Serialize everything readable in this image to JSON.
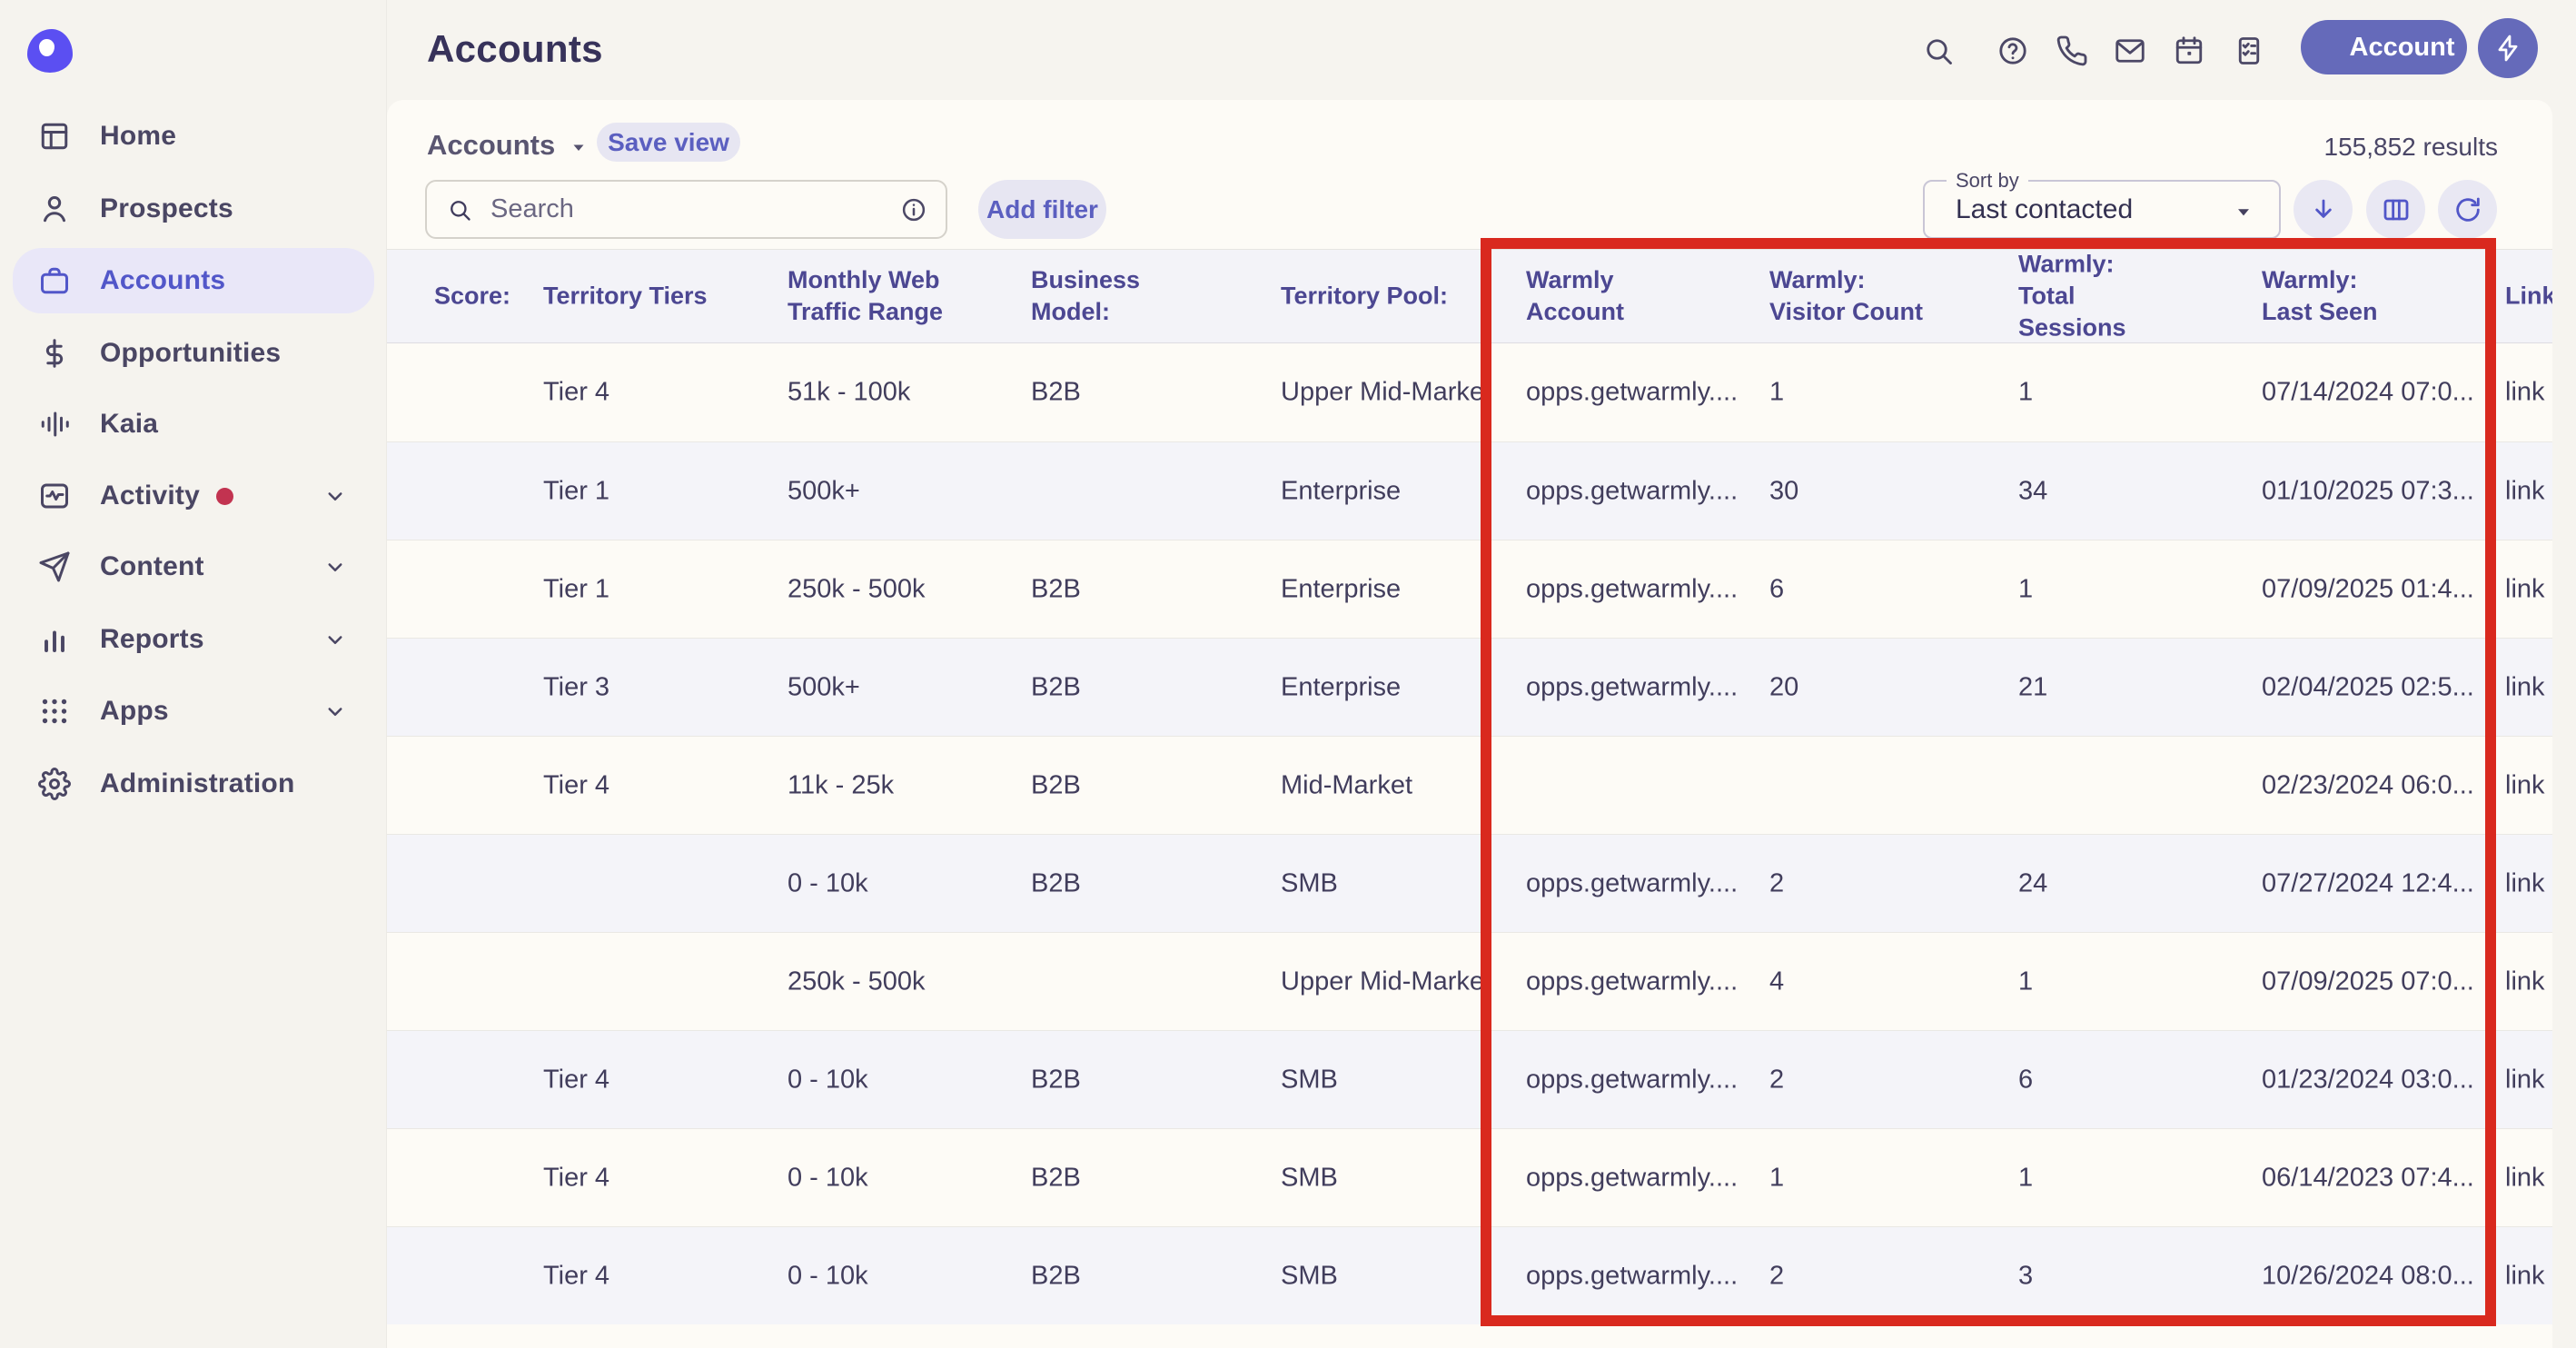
{
  "page_title": "Accounts",
  "topbar": {
    "icons": [
      "search-icon",
      "help-icon",
      "phone-icon",
      "mail-icon",
      "calendar-icon",
      "tasks-icon"
    ],
    "account_button_label": "Account"
  },
  "sidebar": {
    "items": [
      {
        "label": "Home",
        "icon": "home-icon",
        "selected": false,
        "chevron": false,
        "dot": false
      },
      {
        "label": "Prospects",
        "icon": "person-icon",
        "selected": false,
        "chevron": false,
        "dot": false
      },
      {
        "label": "Accounts",
        "icon": "briefcase-icon",
        "selected": true,
        "chevron": false,
        "dot": false
      },
      {
        "label": "Opportunities",
        "icon": "dollar-icon",
        "selected": false,
        "chevron": false,
        "dot": false
      },
      {
        "label": "Kaia",
        "icon": "waveform-icon",
        "selected": false,
        "chevron": false,
        "dot": false
      },
      {
        "label": "Activity",
        "icon": "activity-icon",
        "selected": false,
        "chevron": true,
        "dot": true
      },
      {
        "label": "Content",
        "icon": "send-icon",
        "selected": false,
        "chevron": true,
        "dot": false
      },
      {
        "label": "Reports",
        "icon": "bar-chart-icon",
        "selected": false,
        "chevron": true,
        "dot": false
      },
      {
        "label": "Apps",
        "icon": "apps-grid-icon",
        "selected": false,
        "chevron": true,
        "dot": false
      },
      {
        "label": "Administration",
        "icon": "gear-icon",
        "selected": false,
        "chevron": false,
        "dot": false
      }
    ]
  },
  "toolbar": {
    "view_label": "Accounts",
    "save_view_label": "Save view",
    "search_placeholder": "Search",
    "add_filter_label": "Add filter",
    "results": "155,852 results",
    "sort_by_label": "Sort by",
    "sort_value": "Last contacted",
    "action_icons": [
      "download-icon",
      "columns-icon",
      "refresh-icon"
    ]
  },
  "table": {
    "columns": [
      {
        "key": "score",
        "label": "Score:"
      },
      {
        "key": "tiers",
        "label": "Territory Tiers"
      },
      {
        "key": "traffic",
        "label": "Monthly Web Traffic Range"
      },
      {
        "key": "model",
        "label": "Business Model:"
      },
      {
        "key": "pool",
        "label": "Territory Pool:"
      },
      {
        "key": "warmly",
        "label": "Warmly Account"
      },
      {
        "key": "visitors",
        "label": "Warmly: Visitor Count"
      },
      {
        "key": "sessions",
        "label": "Warmly: Total Sessions"
      },
      {
        "key": "last_seen",
        "label": "Warmly: Last Seen"
      },
      {
        "key": "link",
        "label": "Link"
      }
    ],
    "rows": [
      {
        "score": "",
        "tiers": "Tier 4",
        "traffic": "51k - 100k",
        "model": "B2B",
        "pool": "Upper Mid-Market",
        "warmly": "opps.getwarmly....",
        "visitors": "1",
        "sessions": "1",
        "last_seen": "07/14/2024 07:0...",
        "link": "link"
      },
      {
        "score": "",
        "tiers": "Tier 1",
        "traffic": "500k+",
        "model": "",
        "pool": "Enterprise",
        "warmly": "opps.getwarmly....",
        "visitors": "30",
        "sessions": "34",
        "last_seen": "01/10/2025 07:3...",
        "link": "link"
      },
      {
        "score": "",
        "tiers": "Tier 1",
        "traffic": "250k - 500k",
        "model": "B2B",
        "pool": "Enterprise",
        "warmly": "opps.getwarmly....",
        "visitors": "6",
        "sessions": "1",
        "last_seen": "07/09/2025 01:4...",
        "link": "link"
      },
      {
        "score": "",
        "tiers": "Tier 3",
        "traffic": "500k+",
        "model": "B2B",
        "pool": "Enterprise",
        "warmly": "opps.getwarmly....",
        "visitors": "20",
        "sessions": "21",
        "last_seen": "02/04/2025 02:5...",
        "link": "link"
      },
      {
        "score": "",
        "tiers": "Tier 4",
        "traffic": "11k - 25k",
        "model": "B2B",
        "pool": "Mid-Market",
        "warmly": "",
        "visitors": "",
        "sessions": "",
        "last_seen": "02/23/2024 06:0...",
        "link": "link"
      },
      {
        "score": "",
        "tiers": "",
        "traffic": "0 - 10k",
        "model": "B2B",
        "pool": "SMB",
        "warmly": "opps.getwarmly....",
        "visitors": "2",
        "sessions": "24",
        "last_seen": "07/27/2024 12:4...",
        "link": "link"
      },
      {
        "score": "",
        "tiers": "",
        "traffic": "250k - 500k",
        "model": "",
        "pool": "Upper Mid-Market",
        "warmly": "opps.getwarmly....",
        "visitors": "4",
        "sessions": "1",
        "last_seen": "07/09/2025 07:0...",
        "link": "link"
      },
      {
        "score": "",
        "tiers": "Tier 4",
        "traffic": "0 - 10k",
        "model": "B2B",
        "pool": "SMB",
        "warmly": "opps.getwarmly....",
        "visitors": "2",
        "sessions": "6",
        "last_seen": "01/23/2024 03:0...",
        "link": "link"
      },
      {
        "score": "",
        "tiers": "Tier 4",
        "traffic": "0 - 10k",
        "model": "B2B",
        "pool": "SMB",
        "warmly": "opps.getwarmly....",
        "visitors": "1",
        "sessions": "1",
        "last_seen": "06/14/2023 07:4...",
        "link": "link"
      },
      {
        "score": "",
        "tiers": "Tier 4",
        "traffic": "0 - 10k",
        "model": "B2B",
        "pool": "SMB",
        "warmly": "opps.getwarmly....",
        "visitors": "2",
        "sessions": "3",
        "last_seen": "10/26/2024 08:0...",
        "link": "link"
      }
    ]
  },
  "annotation": {
    "highlight_color": "#d9291e"
  }
}
